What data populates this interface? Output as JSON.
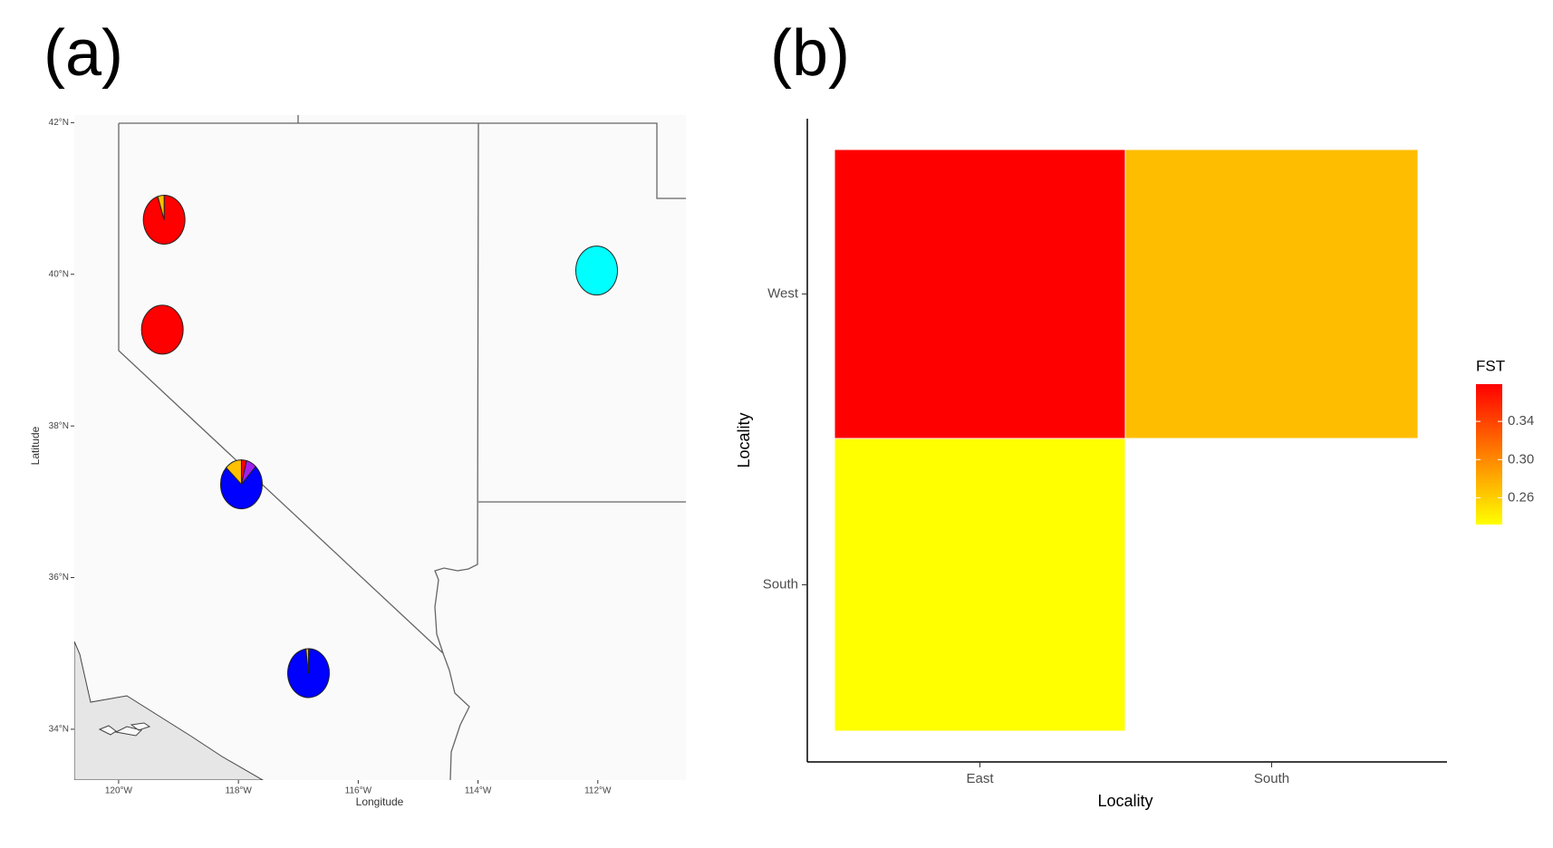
{
  "chart_data": [
    {
      "type": "pie-map",
      "title": "(a)",
      "x_label": "Longitude",
      "y_label": "Latitude",
      "xlim": [
        -120.74,
        -110.53
      ],
      "ylim": [
        33.33,
        42.1
      ],
      "xticks": [
        {
          "value": -120,
          "label": "120°W"
        },
        {
          "value": -118,
          "label": "118°W"
        },
        {
          "value": -116,
          "label": "116°W"
        },
        {
          "value": -114,
          "label": "114°W"
        },
        {
          "value": -112,
          "label": "112°W"
        }
      ],
      "yticks": [
        {
          "value": 34,
          "label": "34°N"
        },
        {
          "value": 36,
          "label": "36°N"
        },
        {
          "value": 38,
          "label": "38°N"
        },
        {
          "value": 40,
          "label": "40°N"
        },
        {
          "value": 42,
          "label": "42°N"
        }
      ],
      "colors": [
        "#ff0000",
        "#a020f0",
        "#0000ff",
        "#ffc000",
        "#00ffff"
      ],
      "pies": [
        {
          "lon": -119.24,
          "lat": 40.72,
          "values": [
            95,
            0,
            0,
            5,
            0
          ]
        },
        {
          "lon": -119.27,
          "lat": 39.27,
          "values": [
            100,
            0,
            0,
            0,
            0
          ]
        },
        {
          "lon": -117.95,
          "lat": 37.23,
          "values": [
            4,
            8,
            75,
            13,
            0
          ]
        },
        {
          "lon": -116.83,
          "lat": 34.74,
          "values": [
            1,
            0,
            97,
            2,
            0
          ]
        },
        {
          "lon": -112.02,
          "lat": 40.05,
          "values": [
            0,
            0,
            0,
            0,
            100
          ]
        }
      ]
    },
    {
      "type": "heatmap",
      "title": "(b)",
      "x_label": "Locality",
      "y_label": "Locality",
      "categories": [
        "East",
        "South"
      ],
      "y_categories": [
        "West",
        "South"
      ],
      "values": [
        [
          0.379,
          0.27
        ],
        [
          0.232,
          null
        ]
      ],
      "legend_title": "FST",
      "low_color": "#ffff00",
      "high_color": "#ff0000",
      "clim": [
        0.232,
        0.379
      ],
      "cticks": [
        0.26,
        {
          "value": 0.3,
          "label": "0.30"
        },
        0.34
      ]
    }
  ]
}
